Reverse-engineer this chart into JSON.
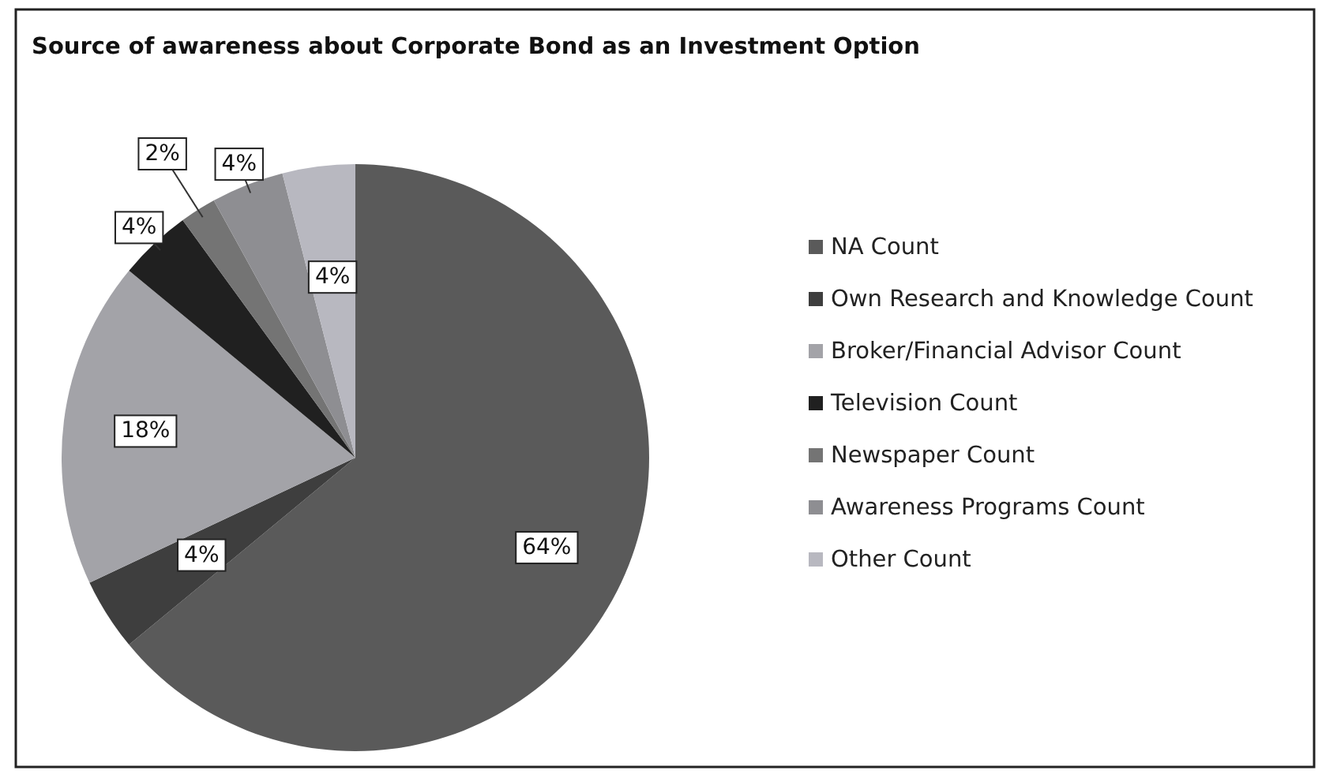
{
  "chart_data": {
    "type": "pie",
    "title": "Source of awareness about Corporate Bond as an Investment Option",
    "categories": [
      "NA Count",
      "Own Research and Knowledge Count",
      "Broker/Financial Advisor Count",
      "Television Count",
      "Newspaper Count",
      "Awareness Programs Count",
      "Other Count"
    ],
    "values": [
      64,
      4,
      18,
      4,
      2,
      4,
      4
    ],
    "colors": [
      "#5a5a5a",
      "#3e3e3e",
      "#a3a3a8",
      "#202020",
      "#747474",
      "#8e8e92",
      "#b8b8c0"
    ],
    "value_labels": [
      "64%",
      "4%",
      "18%",
      "4%",
      "2%",
      "4%",
      "4%"
    ],
    "legend": "right"
  }
}
